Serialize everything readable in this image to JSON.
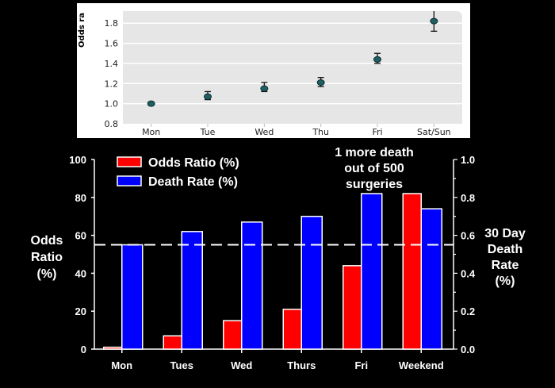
{
  "chart_data": [
    {
      "type": "scatter",
      "title": "",
      "xlabel": "",
      "ylabel": "Odds ra",
      "categories": [
        "Mon",
        "Tue",
        "Wed",
        "Thu",
        "Fri",
        "Sat/Sun"
      ],
      "values": [
        1.0,
        1.07,
        1.15,
        1.21,
        1.44,
        1.82
      ],
      "error_low": [
        1.0,
        1.04,
        1.12,
        1.17,
        1.4,
        1.72
      ],
      "error_high": [
        1.0,
        1.12,
        1.21,
        1.26,
        1.5,
        1.92
      ],
      "ylim": [
        0.8,
        1.92
      ],
      "yticks": [
        "0.8",
        "1.0",
        "1.2",
        "1.4",
        "1.6",
        "1.8"
      ],
      "ytick_values": [
        0.8,
        1.0,
        1.2,
        1.4,
        1.6,
        1.8
      ],
      "grid": true,
      "colors": {
        "marker": "#1f5f63",
        "background": "#e6e6e6",
        "grid": "#ffffff"
      }
    },
    {
      "type": "bar",
      "title": "",
      "categories": [
        "Mon",
        "Tues",
        "Wed",
        "Thurs",
        "Fri",
        "Weekend"
      ],
      "series": [
        {
          "name": "Odds Ratio (%)",
          "axis": "left",
          "color": "#ff0000",
          "values": [
            1,
            7,
            15,
            21,
            44,
            82
          ]
        },
        {
          "name": "Death Rate (%)",
          "axis": "right",
          "color": "#0000ff",
          "values": [
            0.55,
            0.62,
            0.67,
            0.7,
            0.82,
            0.74
          ]
        }
      ],
      "ylabel_left": [
        "Odds",
        "Ratio",
        "(%)"
      ],
      "ylabel_right": [
        "30 Day",
        "Death",
        "Rate",
        "(%)"
      ],
      "ylim_left": [
        0,
        100
      ],
      "ylim_right": [
        0,
        1.0
      ],
      "yticks_left": [
        "0",
        "20",
        "40",
        "60",
        "80",
        "100"
      ],
      "ytick_values_left": [
        0,
        20,
        40,
        60,
        80,
        100
      ],
      "yticks_right": [
        "0.0",
        "0.2",
        "0.4",
        "0.6",
        "0.8",
        "1.0"
      ],
      "ytick_values_right": [
        0,
        0.2,
        0.4,
        0.6,
        0.8,
        1.0
      ],
      "reference_line": {
        "axis": "left",
        "value": 55,
        "style": "dashed"
      },
      "annotation": [
        "1 more death",
        "out of 500",
        "surgeries"
      ],
      "legend": {
        "placement": "top-left",
        "entries": [
          "Odds Ratio (%)",
          "Death Rate (%)"
        ]
      },
      "grid": false
    }
  ]
}
